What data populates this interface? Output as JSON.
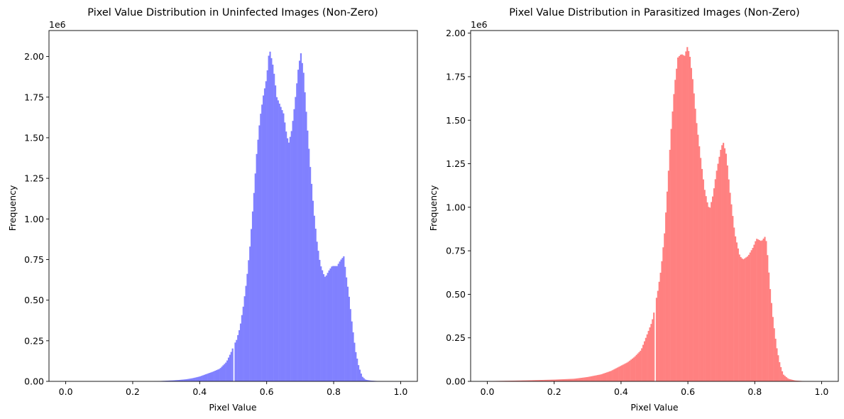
{
  "chart_data": [
    {
      "type": "bar",
      "title": "Pixel Value Distribution in Uninfected Images (Non-Zero)",
      "xlabel": "Pixel Value",
      "ylabel": "Frequency",
      "y_offset_label": "1e6",
      "xlim": [
        -0.05,
        1.05
      ],
      "ylim": [
        0,
        2160000
      ],
      "xticks": [
        0.0,
        0.2,
        0.4,
        0.6,
        0.8,
        1.0
      ],
      "xtick_labels": [
        "0.0",
        "0.2",
        "0.4",
        "0.6",
        "0.8",
        "1.0"
      ],
      "yticks": [
        0,
        250000,
        500000,
        750000,
        1000000,
        1250000,
        1500000,
        1750000,
        2000000
      ],
      "ytick_labels": [
        "0.00",
        "0.25",
        "0.50",
        "0.75",
        "1.00",
        "1.25",
        "1.50",
        "1.75",
        "2.00"
      ],
      "color": "#8080ff",
      "bin_width": 0.004,
      "gap_at": 0.5,
      "profile": [
        [
          0.0,
          0
        ],
        [
          0.26,
          0
        ],
        [
          0.28,
          2000
        ],
        [
          0.3,
          4000
        ],
        [
          0.32,
          6000
        ],
        [
          0.34,
          9000
        ],
        [
          0.36,
          13000
        ],
        [
          0.38,
          20000
        ],
        [
          0.4,
          30000
        ],
        [
          0.42,
          45000
        ],
        [
          0.44,
          60000
        ],
        [
          0.46,
          78000
        ],
        [
          0.48,
          120000
        ],
        [
          0.496,
          190000
        ],
        [
          0.5,
          215000
        ],
        [
          0.51,
          255000
        ],
        [
          0.52,
          330000
        ],
        [
          0.53,
          460000
        ],
        [
          0.54,
          620000
        ],
        [
          0.55,
          830000
        ],
        [
          0.56,
          1100000
        ],
        [
          0.57,
          1400000
        ],
        [
          0.58,
          1620000
        ],
        [
          0.59,
          1760000
        ],
        [
          0.6,
          1870000
        ],
        [
          0.608,
          2050000
        ],
        [
          0.62,
          1930000
        ],
        [
          0.63,
          1750000
        ],
        [
          0.64,
          1700000
        ],
        [
          0.65,
          1650000
        ],
        [
          0.66,
          1510000
        ],
        [
          0.666,
          1470000
        ],
        [
          0.675,
          1550000
        ],
        [
          0.685,
          1730000
        ],
        [
          0.695,
          1940000
        ],
        [
          0.702,
          2020000
        ],
        [
          0.71,
          1900000
        ],
        [
          0.72,
          1600000
        ],
        [
          0.73,
          1320000
        ],
        [
          0.74,
          1060000
        ],
        [
          0.75,
          860000
        ],
        [
          0.76,
          720000
        ],
        [
          0.77,
          660000
        ],
        [
          0.775,
          640000
        ],
        [
          0.785,
          680000
        ],
        [
          0.795,
          710000
        ],
        [
          0.81,
          710000
        ],
        [
          0.82,
          745000
        ],
        [
          0.83,
          770000
        ],
        [
          0.838,
          640000
        ],
        [
          0.845,
          540000
        ],
        [
          0.855,
          350000
        ],
        [
          0.865,
          190000
        ],
        [
          0.875,
          90000
        ],
        [
          0.885,
          30000
        ],
        [
          0.895,
          10000
        ],
        [
          0.91,
          5000
        ],
        [
          0.93,
          2000
        ],
        [
          0.95,
          1000
        ],
        [
          1.0,
          0
        ]
      ]
    },
    {
      "type": "bar",
      "title": "Pixel Value Distribution in Parasitized Images (Non-Zero)",
      "xlabel": "Pixel Value",
      "ylabel": "Frequency",
      "y_offset_label": "1e6",
      "xlim": [
        -0.05,
        1.05
      ],
      "ylim": [
        0,
        2015000
      ],
      "xticks": [
        0.0,
        0.2,
        0.4,
        0.6,
        0.8,
        1.0
      ],
      "xtick_labels": [
        "0.0",
        "0.2",
        "0.4",
        "0.6",
        "0.8",
        "1.0"
      ],
      "yticks": [
        0,
        250000,
        500000,
        750000,
        1000000,
        1250000,
        1500000,
        1750000,
        2000000
      ],
      "ytick_labels": [
        "0.00",
        "0.25",
        "0.50",
        "0.75",
        "1.00",
        "1.25",
        "1.50",
        "1.75",
        "2.00"
      ],
      "color": "#ff8080",
      "bin_width": 0.004,
      "gap_at": 0.5,
      "profile": [
        [
          0.0,
          0
        ],
        [
          0.02,
          2000
        ],
        [
          0.1,
          5000
        ],
        [
          0.2,
          10000
        ],
        [
          0.26,
          15000
        ],
        [
          0.3,
          25000
        ],
        [
          0.34,
          40000
        ],
        [
          0.37,
          60000
        ],
        [
          0.4,
          90000
        ],
        [
          0.42,
          110000
        ],
        [
          0.44,
          140000
        ],
        [
          0.46,
          180000
        ],
        [
          0.47,
          230000
        ],
        [
          0.48,
          280000
        ],
        [
          0.49,
          330000
        ],
        [
          0.496,
          370000
        ],
        [
          0.5,
          420000
        ],
        [
          0.51,
          520000
        ],
        [
          0.52,
          650000
        ],
        [
          0.53,
          850000
        ],
        [
          0.54,
          1150000
        ],
        [
          0.55,
          1450000
        ],
        [
          0.56,
          1700000
        ],
        [
          0.57,
          1860000
        ],
        [
          0.58,
          1880000
        ],
        [
          0.59,
          1870000
        ],
        [
          0.598,
          1920000
        ],
        [
          0.605,
          1880000
        ],
        [
          0.615,
          1720000
        ],
        [
          0.625,
          1500000
        ],
        [
          0.64,
          1250000
        ],
        [
          0.65,
          1100000
        ],
        [
          0.66,
          1010000
        ],
        [
          0.665,
          990000
        ],
        [
          0.675,
          1070000
        ],
        [
          0.685,
          1200000
        ],
        [
          0.7,
          1350000
        ],
        [
          0.706,
          1370000
        ],
        [
          0.715,
          1300000
        ],
        [
          0.725,
          1100000
        ],
        [
          0.74,
          850000
        ],
        [
          0.755,
          720000
        ],
        [
          0.765,
          700000
        ],
        [
          0.78,
          720000
        ],
        [
          0.795,
          770000
        ],
        [
          0.805,
          820000
        ],
        [
          0.82,
          805000
        ],
        [
          0.83,
          830000
        ],
        [
          0.835,
          800000
        ],
        [
          0.845,
          550000
        ],
        [
          0.855,
          350000
        ],
        [
          0.865,
          200000
        ],
        [
          0.875,
          100000
        ],
        [
          0.885,
          40000
        ],
        [
          0.9,
          15000
        ],
        [
          0.92,
          5000
        ],
        [
          0.95,
          1000
        ],
        [
          1.0,
          0
        ]
      ]
    }
  ]
}
